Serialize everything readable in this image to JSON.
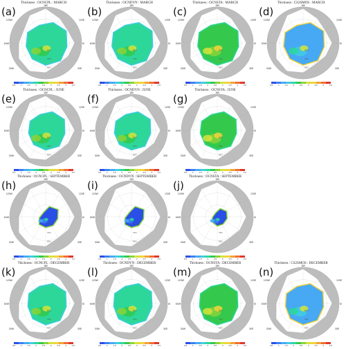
{
  "colorbar": {
    "colors": [
      "#2a4fe6",
      "#3c7ff0",
      "#47a9f4",
      "#3fcde0",
      "#2dd79a",
      "#34c94c",
      "#8ad33a",
      "#d4e33c",
      "#f3d23b",
      "#f2a239",
      "#ee6f34",
      "#e0372e"
    ],
    "ticks": [
      "0.5",
      "1",
      "1.5",
      "2",
      "2.5",
      "3",
      "3.5",
      "4",
      "4.5"
    ]
  },
  "colors": {
    "land": "#bdbdbd",
    "ocean": "#ffffff",
    "grid": "#9a9a9a"
  },
  "panels": [
    {
      "label": "(a)",
      "title": "Thickness : OCNCPL : MARCH",
      "row": 0,
      "col": 0,
      "ice": "full",
      "palette": "cpl"
    },
    {
      "label": "(b)",
      "title": "Thickness : OCNDYN : MARCH",
      "row": 0,
      "col": 1,
      "ice": "full",
      "palette": "cpl"
    },
    {
      "label": "(c)",
      "title": "Thickness : OCNSTA : MARCH",
      "row": 0,
      "col": 2,
      "ice": "full",
      "palette": "sta"
    },
    {
      "label": "(d)",
      "title": "Thickness : CS2SMOS : MARCH",
      "row": 0,
      "col": 3,
      "ice": "full",
      "palette": "obs"
    },
    {
      "label": "(e)",
      "title": "Thickness : OCNCPL : JUNE",
      "row": 1,
      "col": 0,
      "ice": "june",
      "palette": "cpl"
    },
    {
      "label": "(f)",
      "title": "Thickness : OCNDYN : JUNE",
      "row": 1,
      "col": 1,
      "ice": "june",
      "palette": "cpl"
    },
    {
      "label": "(g)",
      "title": "Thickness : OCNSTA : JUNE",
      "row": 1,
      "col": 2,
      "ice": "june",
      "palette": "sta"
    },
    {
      "label": "(h)",
      "title": "Thickness : OCNCPL : SEPTEMBER",
      "row": 2,
      "col": 0,
      "ice": "sept",
      "palette": "sept"
    },
    {
      "label": "(i)",
      "title": "Thickness : OCNDYN : SEPTEMBER",
      "row": 2,
      "col": 1,
      "ice": "sept",
      "palette": "sept"
    },
    {
      "label": "(j)",
      "title": "Thickness : OCNSTA : SEPTEMBER",
      "row": 2,
      "col": 2,
      "ice": "sept2",
      "palette": "sept"
    },
    {
      "label": "(k)",
      "title": "Thickness : OCNCPL : DECEMBER",
      "row": 3,
      "col": 0,
      "ice": "dec",
      "palette": "cpl"
    },
    {
      "label": "(l)",
      "title": "Thickness : OCNDYN : DECEMBER",
      "row": 3,
      "col": 1,
      "ice": "dec",
      "palette": "cpl"
    },
    {
      "label": "(m)",
      "title": "Thickness : OCNSTA : DECEMBER",
      "row": 3,
      "col": 2,
      "ice": "dec",
      "palette": "sta"
    },
    {
      "label": "(n)",
      "title": "Thickness : CS2SMOS : DECEMBER",
      "row": 3,
      "col": 3,
      "ice": "dec",
      "palette": "obs"
    }
  ],
  "map_labels": {
    "top": "180",
    "left_upper": "120W",
    "right_upper": "120E",
    "left_mid": "60W",
    "right_mid": "60E",
    "left_lower": "30W",
    "right_lower": "30E",
    "lat": [
      "80N",
      "70N",
      "60N"
    ]
  }
}
